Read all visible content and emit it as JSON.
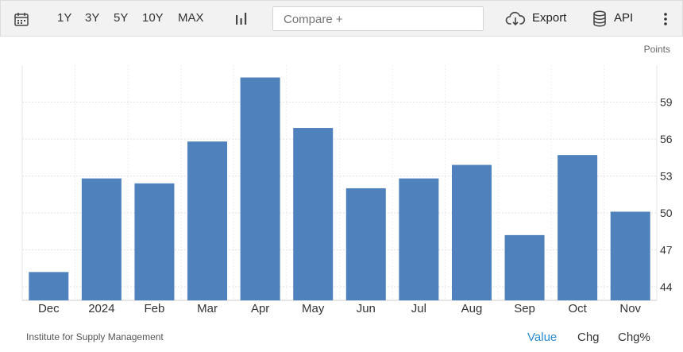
{
  "toolbar": {
    "ranges": [
      "1Y",
      "3Y",
      "5Y",
      "10Y",
      "MAX"
    ],
    "compare_placeholder": "Compare +",
    "export_label": "Export",
    "api_label": "API",
    "icons": {
      "calendar": "calendar-icon",
      "chart_type": "bar-chart-icon",
      "export": "cloud-download-icon",
      "api": "database-icon",
      "more": "more-vertical-icon"
    }
  },
  "unit_label": "Points",
  "source": "Institute for Supply Management",
  "tabs": [
    {
      "label": "Value",
      "active": true
    },
    {
      "label": "Chg",
      "active": false
    },
    {
      "label": "Chg%",
      "active": false
    }
  ],
  "colors": {
    "bar": "#4f81bd",
    "active_tab": "#2a8ad4"
  },
  "chart_data": {
    "type": "bar",
    "categories": [
      "Dec",
      "2024",
      "Feb",
      "Mar",
      "Apr",
      "May",
      "Jun",
      "Jul",
      "Aug",
      "Sep",
      "Oct",
      "Nov"
    ],
    "values": [
      45.2,
      52.8,
      52.4,
      55.8,
      61.0,
      56.9,
      52.0,
      52.8,
      53.9,
      48.2,
      54.7,
      50.1
    ],
    "yticks": [
      44,
      47,
      50,
      53,
      56,
      59
    ],
    "ylim": [
      42.9,
      62.0
    ],
    "grid": true,
    "y_axis_position": "right"
  }
}
